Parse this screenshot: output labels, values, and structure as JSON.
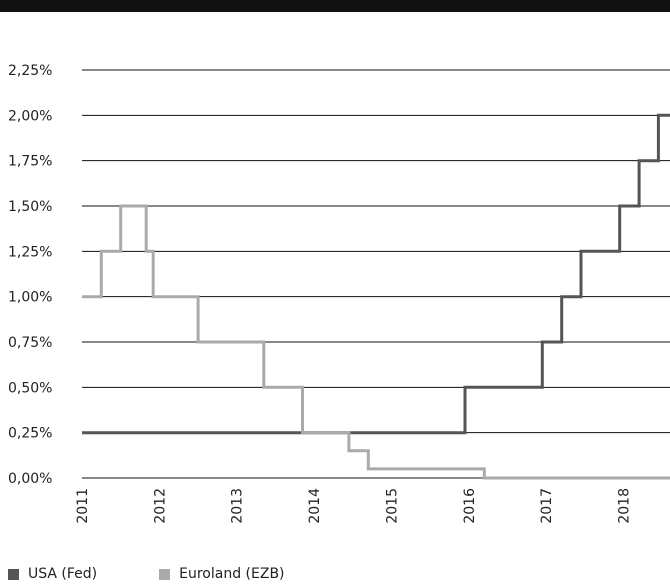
{
  "chart_data": {
    "type": "line",
    "title": "",
    "xlabel": "",
    "ylabel": "",
    "y_ticks": [
      "0,00%",
      "0,25%",
      "0,50%",
      "0,75%",
      "1,00%",
      "1,25%",
      "1,50%",
      "1,75%",
      "2,00%",
      "2,25%"
    ],
    "x_ticks": [
      "2011",
      "2012",
      "2013",
      "2014",
      "2015",
      "2016",
      "2017",
      "2018"
    ],
    "ylim": [
      0,
      2.25
    ],
    "xlim": [
      2011.0,
      2018.6
    ],
    "grid": "horizontal",
    "legend_position": "bottom-left",
    "series": [
      {
        "name": "USA (Fed)",
        "color": "#555555",
        "step": true,
        "points": [
          [
            2011.0,
            0.25
          ],
          [
            2015.95,
            0.25
          ],
          [
            2015.95,
            0.5
          ],
          [
            2016.95,
            0.5
          ],
          [
            2016.95,
            0.75
          ],
          [
            2017.2,
            0.75
          ],
          [
            2017.2,
            1.0
          ],
          [
            2017.45,
            1.0
          ],
          [
            2017.45,
            1.25
          ],
          [
            2017.95,
            1.25
          ],
          [
            2017.95,
            1.5
          ],
          [
            2018.2,
            1.5
          ],
          [
            2018.2,
            1.75
          ],
          [
            2018.45,
            1.75
          ],
          [
            2018.45,
            2.0
          ],
          [
            2018.6,
            2.0
          ]
        ]
      },
      {
        "name": "Euroland (EZB)",
        "color": "#aaaaaa",
        "step": true,
        "points": [
          [
            2011.0,
            1.0
          ],
          [
            2011.25,
            1.0
          ],
          [
            2011.25,
            1.25
          ],
          [
            2011.5,
            1.25
          ],
          [
            2011.5,
            1.5
          ],
          [
            2011.83,
            1.5
          ],
          [
            2011.83,
            1.25
          ],
          [
            2011.92,
            1.25
          ],
          [
            2011.92,
            1.0
          ],
          [
            2012.5,
            1.0
          ],
          [
            2012.5,
            0.75
          ],
          [
            2013.35,
            0.75
          ],
          [
            2013.35,
            0.5
          ],
          [
            2013.85,
            0.5
          ],
          [
            2013.85,
            0.25
          ],
          [
            2014.45,
            0.25
          ],
          [
            2014.45,
            0.15
          ],
          [
            2014.7,
            0.15
          ],
          [
            2014.7,
            0.05
          ],
          [
            2016.2,
            0.05
          ],
          [
            2016.2,
            0.0
          ],
          [
            2018.6,
            0.0
          ]
        ]
      }
    ]
  }
}
